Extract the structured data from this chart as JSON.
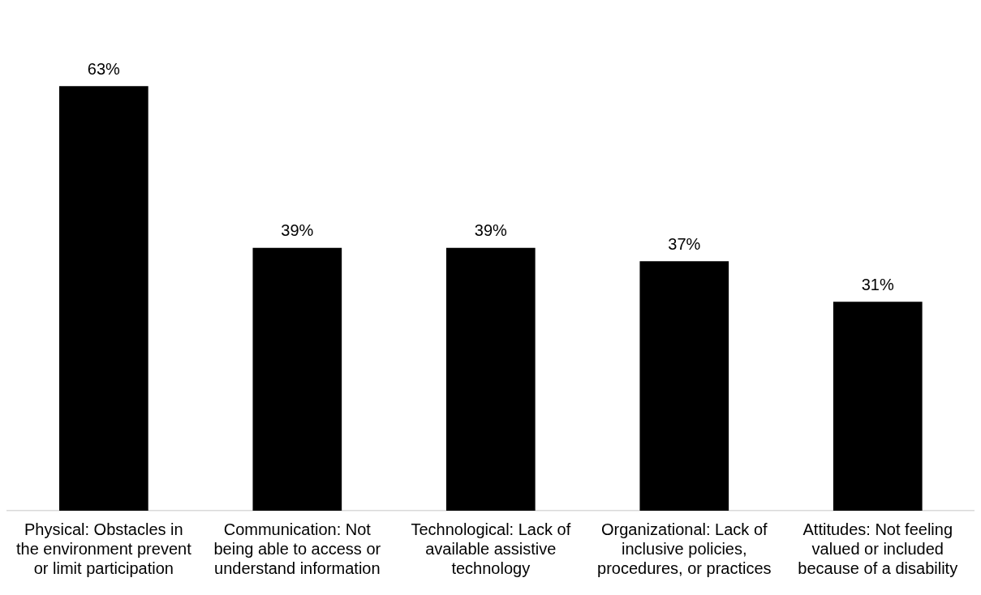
{
  "chart_data": {
    "type": "bar",
    "categories": [
      "Physical: Obstacles in the environment prevent or limit participation",
      "Communication: Not being able to access or understand information",
      "Technological: Lack of available assistive technology",
      "Organizational: Lack of inclusive policies, procedures, or practices",
      "Attitudes: Not feeling valued or included because of a disability"
    ],
    "values": [
      63,
      39,
      39,
      37,
      31
    ],
    "value_labels": [
      "63%",
      "39%",
      "39%",
      "37%",
      "31%"
    ],
    "color": "#000000",
    "grid": false,
    "legend": false
  }
}
